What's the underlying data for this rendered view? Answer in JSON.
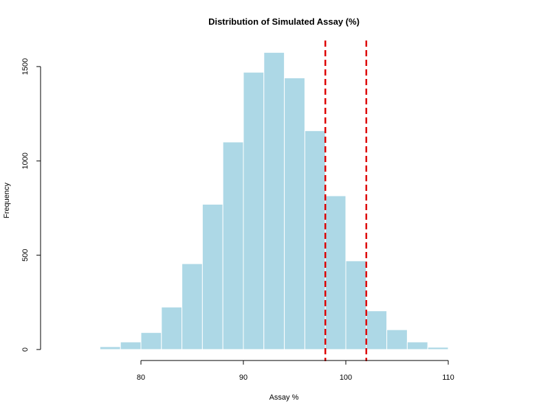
{
  "chart_data": {
    "type": "bar",
    "title": "Distribution of Simulated Assay (%)",
    "xlabel": "Assay %",
    "ylabel": "Frequency",
    "bin_width": 2,
    "bins": [
      {
        "start": 76,
        "end": 78,
        "count": 15
      },
      {
        "start": 78,
        "end": 80,
        "count": 40
      },
      {
        "start": 80,
        "end": 82,
        "count": 90
      },
      {
        "start": 82,
        "end": 84,
        "count": 225
      },
      {
        "start": 84,
        "end": 86,
        "count": 455
      },
      {
        "start": 86,
        "end": 88,
        "count": 770
      },
      {
        "start": 88,
        "end": 90,
        "count": 1100
      },
      {
        "start": 90,
        "end": 92,
        "count": 1470
      },
      {
        "start": 92,
        "end": 94,
        "count": 1575
      },
      {
        "start": 94,
        "end": 96,
        "count": 1440
      },
      {
        "start": 96,
        "end": 98,
        "count": 1160
      },
      {
        "start": 98,
        "end": 100,
        "count": 815
      },
      {
        "start": 100,
        "end": 102,
        "count": 470
      },
      {
        "start": 102,
        "end": 104,
        "count": 205
      },
      {
        "start": 104,
        "end": 106,
        "count": 105
      },
      {
        "start": 106,
        "end": 108,
        "count": 40
      },
      {
        "start": 108,
        "end": 110,
        "count": 12
      }
    ],
    "reference_lines": [
      98,
      102
    ],
    "xlim": [
      80,
      110
    ],
    "ylim": [
      0,
      1500
    ],
    "x_ticks": [
      "80",
      "90",
      "100",
      "110"
    ],
    "y_ticks": [
      "0",
      "500",
      "1000",
      "1500"
    ],
    "bar_color": "#add8e6",
    "bar_border_color": "#ffffff",
    "reference_line_color": "#dd0000",
    "grid": false
  }
}
